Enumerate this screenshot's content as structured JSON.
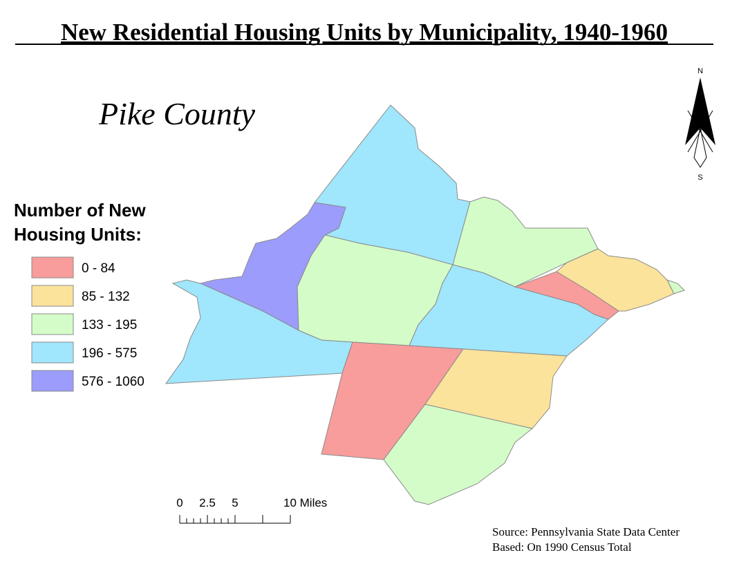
{
  "title": "New Residential Housing Units by Municipality, 1940-1960",
  "subtitle": "Pike County",
  "legend": {
    "title_lines": [
      "Number of New",
      "Housing Units:"
    ],
    "classes": [
      {
        "label": "0 - 84",
        "color": "#f89c9c"
      },
      {
        "label": "85 - 132",
        "color": "#fbe39c"
      },
      {
        "label": "133 - 195",
        "color": "#d4fcc8"
      },
      {
        "label": "196 - 575",
        "color": "#a0e6fc"
      },
      {
        "label": "576 - 1060",
        "color": "#9c9cfc"
      }
    ]
  },
  "north_arrow": {
    "north": "N",
    "south": "S"
  },
  "scale_bar": {
    "labels": [
      "0",
      "2.5",
      "5",
      "10 Miles"
    ]
  },
  "source": [
    "Source: Pennsylvania State Data Center",
    "Based: On 1990 Census Total"
  ]
}
